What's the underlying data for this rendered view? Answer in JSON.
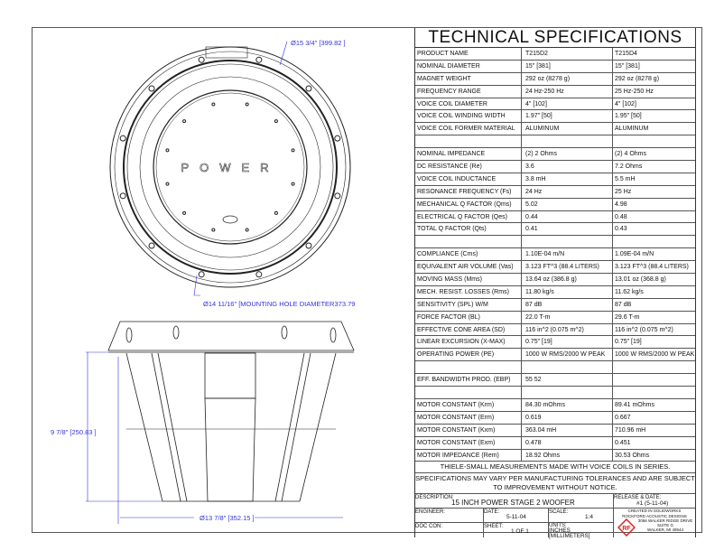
{
  "spec_title": "TECHNICAL SPECIFICATIONS",
  "rows": [
    [
      "PRODUCT NAME",
      "T215D2",
      "T215D4"
    ],
    [
      "NOMINAL DIAMETER",
      "15\" [381]",
      "15\" [381]"
    ],
    [
      "MAGNET WEIGHT",
      "292 oz (8278 g)",
      "292 oz (8278 g)"
    ],
    [
      "FREQUENCY RANGE",
      "24 Hz-250 Hz",
      "25 Hz-250 Hz"
    ],
    [
      "VOICE COIL DIAMETER",
      "4\" [102]",
      "4\" [102]"
    ],
    [
      "VOICE COIL WINDING WIDTH",
      "1.97\" [50]",
      "1.95\" [50]"
    ],
    [
      "VOICE COIL FORMER MATERIAL",
      "ALUMINUM",
      "ALUMINUM"
    ],
    [
      "",
      "",
      ""
    ],
    [
      "NOMINAL IMPEDANCE",
      "(2) 2 Ohms",
      "(2) 4 Ohms"
    ],
    [
      "DC RESISTANCE (Re)",
      "3.6",
      "7.2 Ohms"
    ],
    [
      "VOICE COIL INDUCTANCE",
      "3.8 mH",
      "5.5 mH"
    ],
    [
      "RESONANCE FREQUENCY (Fs)",
      "24 Hz",
      "25 Hz"
    ],
    [
      "MECHANICAL Q FACTOR (Qms)",
      "5.02",
      "4.98"
    ],
    [
      "ELECTRICAL Q FACTOR (Qes)",
      "0.44",
      "0.48"
    ],
    [
      "TOTAL Q FACTOR (Qts)",
      "0.41",
      "0.43"
    ],
    [
      "",
      "",
      ""
    ],
    [
      "COMPLIANCE (Cms)",
      "1.10E-04 m/N",
      "1.09E-04 m/N"
    ],
    [
      "EQUIVALENT AIR VOLUME (Vas)",
      "3.123 FT^3 (88.4 LITERS)",
      "3.123 FT^3 (88.4 LITERS)"
    ],
    [
      "MOVING MASS (Mms)",
      "13.64 oz (386.8 g)",
      "13.01 oz (368.8 g)"
    ],
    [
      "MECH. RESIST. LOSSES (Rms)",
      "11.80 kg/s",
      "11.62 kg/s"
    ],
    [
      "SENSITIVITY (SPL) W/M",
      "87 dB",
      "87 dB"
    ],
    [
      "FORCE FACTOR (BL)",
      "22.0 T-m",
      "29.6 T-m"
    ],
    [
      "EFFECTIVE CONE AREA (SD)",
      "116 in^2 (0.075 m^2)",
      "116 in^2 (0.075 m^2)"
    ],
    [
      "LINEAR EXCURSION (X-MAX)",
      "0.75\" [19]",
      "0.75\" [19]"
    ],
    [
      "OPERATING POWER (PE)",
      "1000 W RMS/2000 W PEAK",
      "1000 W RMS/2000 W PEAK"
    ],
    [
      "",
      "",
      ""
    ],
    [
      "EFF. BANDWIDTH PROD. (EBP)",
      "55 52",
      ""
    ],
    [
      "",
      "",
      ""
    ],
    [
      "MOTOR CONSTANT (Krm)",
      "84.30 mOhms",
      "89.41 mOhms"
    ],
    [
      "MOTOR CONSTANT (Erm)",
      "0.619",
      "0.667"
    ],
    [
      "MOTOR CONSTANT (Kxm)",
      "363.04 mH",
      "710.96 mH"
    ],
    [
      "MOTOR CONSTANT (Exm)",
      "0.478",
      "0.451"
    ],
    [
      "MOTOR IMPEDANCE (Rem)",
      "18.92 Ohms",
      "30.53 Ohms"
    ]
  ],
  "notes": {
    "series": "THIELE-SMALL MEASUREMENTS MADE WITH VOICE COILS IN SERIES.",
    "tolerance": "SPECIFICATIONS MAY VARY PER MANUFACTURING TOLERANCES AND ARE SUBJECT TO IMPROVEMENT  WITHOUT NOTICE."
  },
  "title_block": {
    "description_label": "DESCRIPTION:",
    "description": "15 INCH POWER STAGE 2 WOOFER",
    "release_label": "RELEASE & DATE:",
    "release": "#1 (5-11-04)",
    "engineer_label": "ENGINEER:",
    "date_label": "DATE:",
    "date": "5-11-04",
    "scale_label": "SCALE:",
    "scale": "1:4",
    "created": "CREATED IN SOLIDWORKS",
    "company": "ROCKFORD ACOUSTIC DESIGNS",
    "doc_con_label": "DOC CON:",
    "sheet_label": "SHEET:",
    "sheet": "1 OF 1",
    "units_label": "UNITS:",
    "units": "INCHES [MILLIMETERS]",
    "address1": "3056 WALKER RIDGE DRIVE",
    "address2": "SUITE G",
    "address3": "WALKER, MI 49544",
    "logo": "RF"
  },
  "drawing": {
    "logo_text": "POWER",
    "dim_outer": "Ø15 3/4\" [399.82 ]",
    "dim_mounting": "Ø14 11/16\" [MOUNTING HOLE DIAMETER373.79",
    "dim_height": "9 7/8\" [250.83 ]",
    "dim_base": "Ø13 7/8\" [352.15 ]",
    "dim_color": "#3333dd"
  }
}
